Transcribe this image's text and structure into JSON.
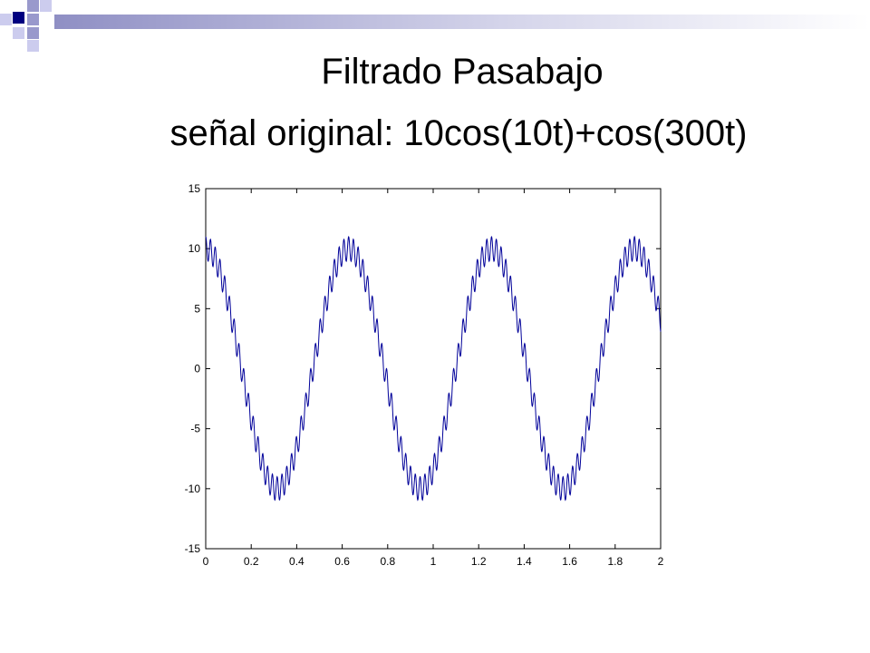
{
  "slide": {
    "title_line1": "Filtrado Pasabajo",
    "title_line2": "señal original: 10cos(10t)+cos(300t)"
  },
  "colors": {
    "accent_navy": "#000080",
    "accent_lavender": "#9999cc",
    "accent_light": "#ccccee",
    "series": "#000099"
  },
  "chart_data": {
    "type": "line",
    "title": "",
    "xlabel": "",
    "ylabel": "",
    "xlim": [
      0,
      2
    ],
    "ylim": [
      -15,
      15
    ],
    "x_ticks": [
      "0",
      "0.2",
      "0.4",
      "0.6",
      "0.8",
      "1",
      "1.2",
      "1.4",
      "1.6",
      "1.8",
      "2"
    ],
    "y_ticks": [
      "15",
      "10",
      "5",
      "0",
      "-5",
      "-10",
      "-15"
    ],
    "grid": false,
    "series": [
      {
        "expression": "10cos(10t)+cos(300t)",
        "x_range": [
          0,
          2
        ],
        "samples": 2001,
        "color": "#000099"
      }
    ]
  }
}
